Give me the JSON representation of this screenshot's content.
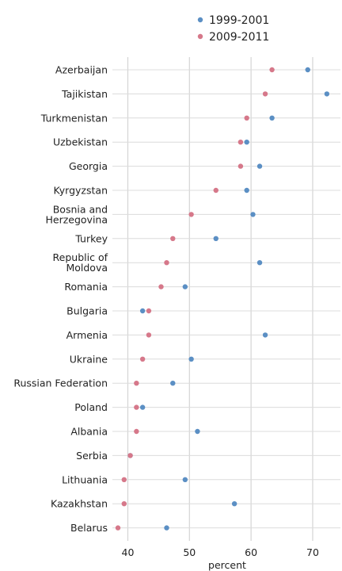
{
  "chart_data": {
    "type": "scatter",
    "xlabel": "percent",
    "xlim": [
      37.5,
      74.5
    ],
    "xticks": [
      40,
      50,
      60,
      70
    ],
    "legend": {
      "position": "top"
    },
    "colors": {
      "1999-2001": "#5b8fc4",
      "2009-2011": "#d6788a"
    },
    "categories": [
      "Azerbaijan",
      "Tajikistan",
      "Turkmenistan",
      "Uzbekistan",
      "Georgia",
      "Kyrgyzstan",
      "Bosnia and Herzegovina",
      "Turkey",
      "Republic of Moldova",
      "Romania",
      "Bulgaria",
      "Armenia",
      "Ukraine",
      "Russian Federation",
      "Poland",
      "Albania",
      "Serbia",
      "Lithuania",
      "Kazakhstan",
      "Belarus"
    ],
    "series": [
      {
        "name": "1999-2001",
        "values": [
          69.2,
          72.3,
          63.4,
          59.3,
          61.4,
          59.3,
          60.3,
          54.3,
          61.4,
          49.3,
          42.4,
          62.3,
          50.3,
          47.3,
          42.4,
          51.3,
          40.4,
          49.3,
          57.3,
          46.3
        ]
      },
      {
        "name": "2009-2011",
        "values": [
          63.4,
          62.3,
          59.3,
          58.3,
          58.3,
          54.3,
          50.3,
          47.3,
          46.3,
          45.4,
          43.4,
          43.4,
          42.4,
          41.4,
          41.4,
          41.4,
          40.4,
          39.4,
          39.4,
          38.4
        ]
      }
    ]
  }
}
